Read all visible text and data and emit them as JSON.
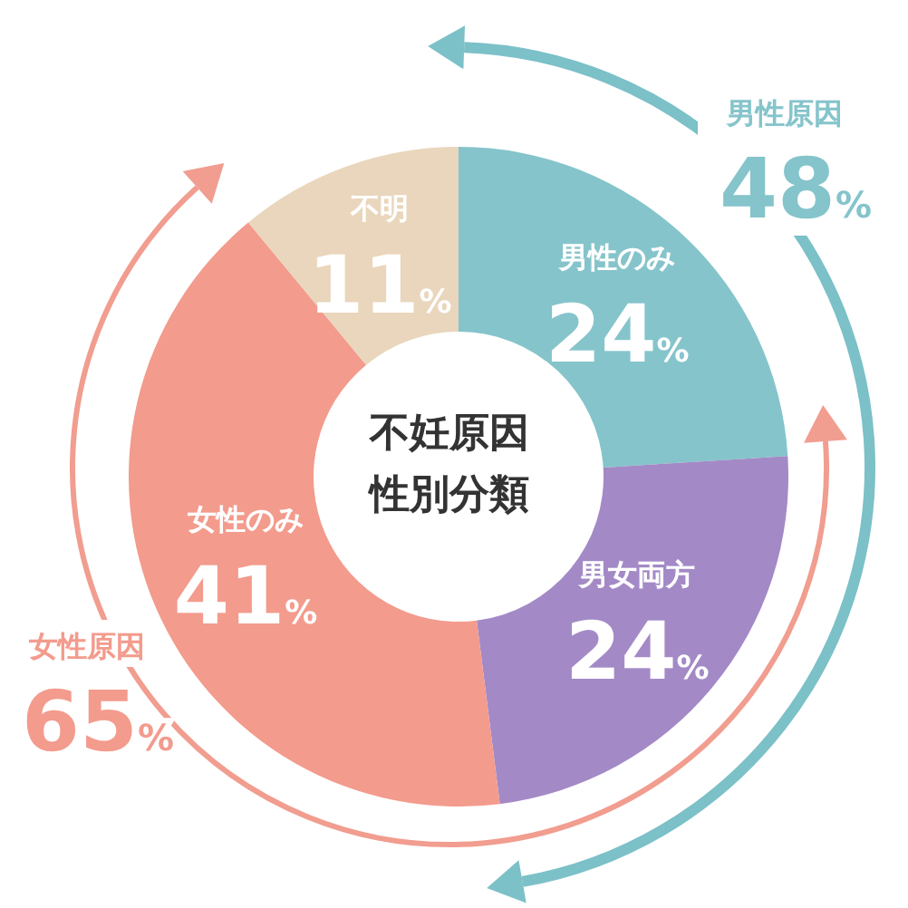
{
  "chart_data": {
    "type": "donut",
    "title": "不妊原因性別分類",
    "categories": [
      "男性のみ",
      "男女両方",
      "女性のみ",
      "不明"
    ],
    "values": [
      24,
      24,
      41,
      11
    ],
    "value_labels": [
      "24%",
      "24%",
      "41%",
      "11%"
    ],
    "colors": [
      "#85c4cb",
      "#a38ac6",
      "#f39b8d",
      "#e9d6bc"
    ],
    "annotations": [
      "男性原因 48%",
      "女性原因 65%"
    ]
  }
}
